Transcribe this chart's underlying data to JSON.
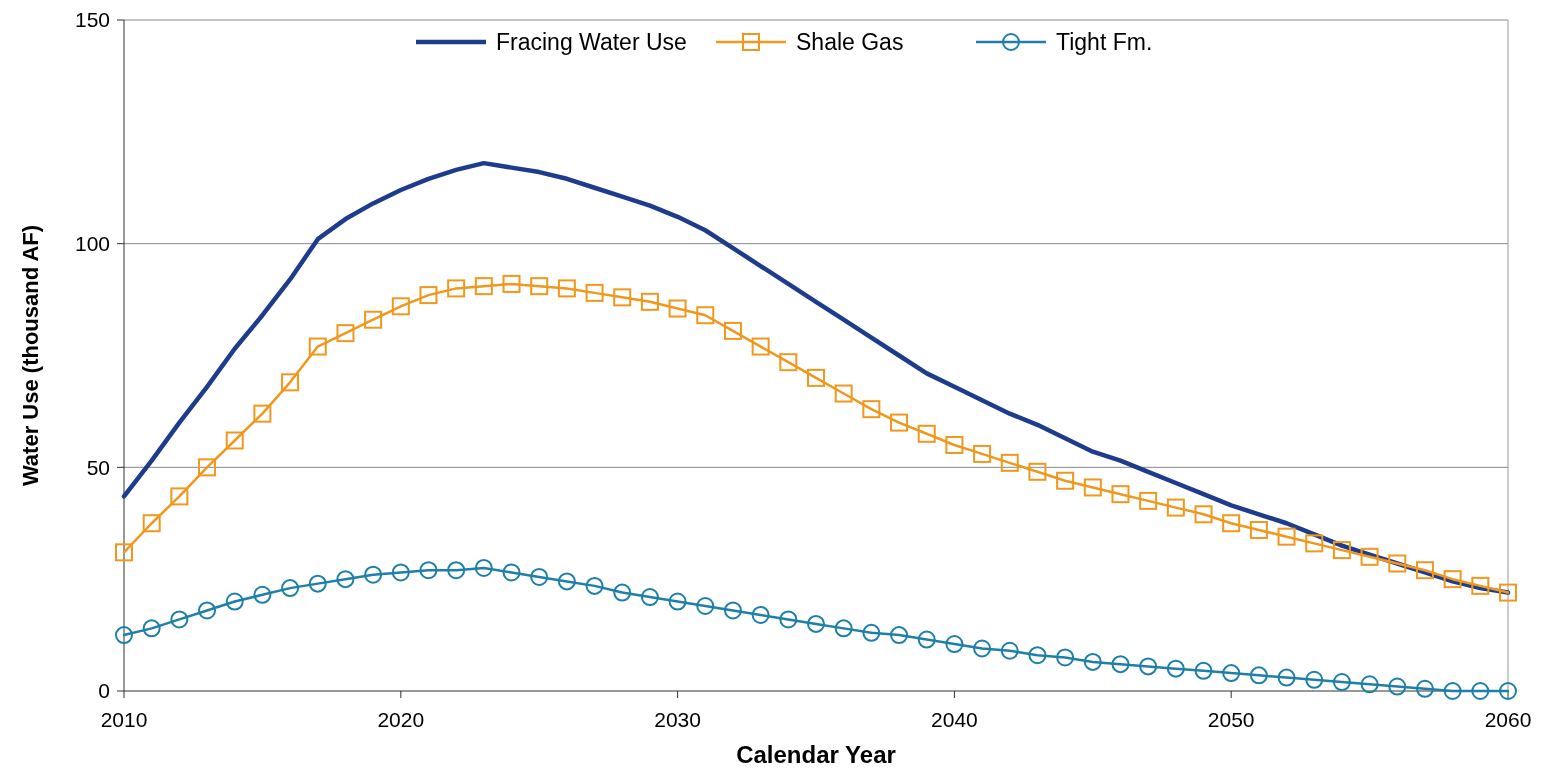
{
  "chart_data": {
    "type": "line",
    "xlabel": "Calendar Year",
    "ylabel": "Water Use (thousand AF)",
    "x": [
      2010,
      2011,
      2012,
      2013,
      2014,
      2015,
      2016,
      2017,
      2018,
      2019,
      2020,
      2021,
      2022,
      2023,
      2024,
      2025,
      2026,
      2027,
      2028,
      2029,
      2030,
      2031,
      2032,
      2033,
      2034,
      2035,
      2036,
      2037,
      2038,
      2039,
      2040,
      2041,
      2042,
      2043,
      2044,
      2045,
      2046,
      2047,
      2048,
      2049,
      2050,
      2051,
      2052,
      2053,
      2054,
      2055,
      2056,
      2057,
      2058,
      2059,
      2060
    ],
    "xlim": [
      2010,
      2060
    ],
    "xticks": [
      2010,
      2020,
      2030,
      2040,
      2050,
      2060
    ],
    "ylim": [
      0,
      150
    ],
    "yticks": [
      0,
      50,
      100,
      150
    ],
    "grid": "y",
    "legend": "top",
    "series": [
      {
        "name": "Fracing Water Use",
        "color": "#1f3c8c",
        "marker": "none",
        "values": [
          43.5,
          51.5,
          60,
          68,
          76.5,
          84,
          92,
          101,
          105.5,
          109,
          112,
          114.5,
          116.5,
          118,
          117,
          116,
          114.5,
          112.5,
          110.5,
          108.5,
          106,
          103,
          99,
          95,
          91,
          87,
          83,
          79,
          75,
          71,
          68,
          65,
          62,
          59.5,
          56.5,
          53.5,
          51.5,
          49,
          46.5,
          44,
          41.5,
          39.5,
          37.5,
          35,
          32.5,
          30.5,
          28.5,
          26.5,
          24.5,
          23,
          22
        ]
      },
      {
        "name": "Shale Gas",
        "color": "#f0981e",
        "marker": "square",
        "values": [
          31,
          37.5,
          43.5,
          50,
          56,
          62,
          69,
          77,
          80,
          83,
          86,
          88.5,
          90,
          90.5,
          91,
          90.5,
          90,
          89,
          88,
          87,
          85.5,
          84,
          80.5,
          77,
          73.5,
          70,
          66.5,
          63,
          60,
          57.5,
          55,
          53,
          51,
          49,
          47,
          45.5,
          44,
          42.5,
          41,
          39.5,
          37.5,
          36,
          34.5,
          33,
          31.5,
          30,
          28.5,
          27,
          25,
          23.5,
          22
        ]
      },
      {
        "name": "Tight Fm.",
        "color": "#1f7fa8",
        "marker": "circle",
        "values": [
          12.5,
          14,
          16,
          18,
          20,
          21.5,
          23,
          24,
          25,
          26,
          26.5,
          27,
          27,
          27.5,
          26.5,
          25.5,
          24.5,
          23.5,
          22,
          21,
          20,
          19,
          18,
          17,
          16,
          15,
          14,
          13,
          12.5,
          11.5,
          10.5,
          9.5,
          9,
          8,
          7.5,
          6.5,
          6,
          5.5,
          5,
          4.5,
          4,
          3.5,
          3,
          2.5,
          2,
          1.5,
          1,
          0.5,
          0,
          0,
          0
        ]
      }
    ]
  }
}
